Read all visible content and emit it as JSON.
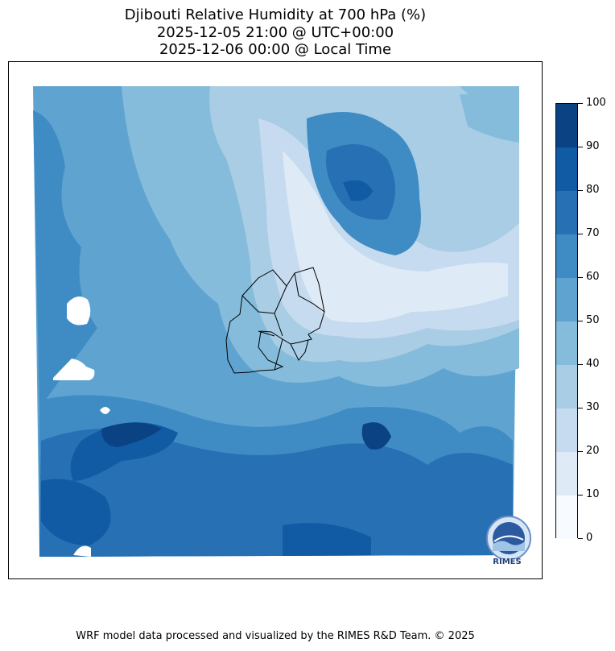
{
  "title": {
    "line1": "Djibouti Relative Humidity at 700 hPa (%)",
    "line2": "2025-12-05 21:00 @ UTC+00:00",
    "line3": "2025-12-06 00:00 @ Local Time"
  },
  "colorbar": {
    "levels": [
      0,
      10,
      20,
      30,
      40,
      50,
      60,
      70,
      80,
      90,
      100
    ],
    "labels": [
      "0",
      "10",
      "20",
      "30",
      "40",
      "50",
      "60",
      "70",
      "80",
      "90",
      "100"
    ],
    "colors": [
      "#f7fbff",
      "#deebf7",
      "#c6dbef",
      "#a8cde4",
      "#85bcdb",
      "#5fa4d1",
      "#3f8cc5",
      "#2770b4",
      "#105ba4",
      "#0b4283"
    ]
  },
  "logo": {
    "text": "RIMES"
  },
  "footer": "WRF model data processed and visualized by the RIMES R&D Team. © 2025"
}
